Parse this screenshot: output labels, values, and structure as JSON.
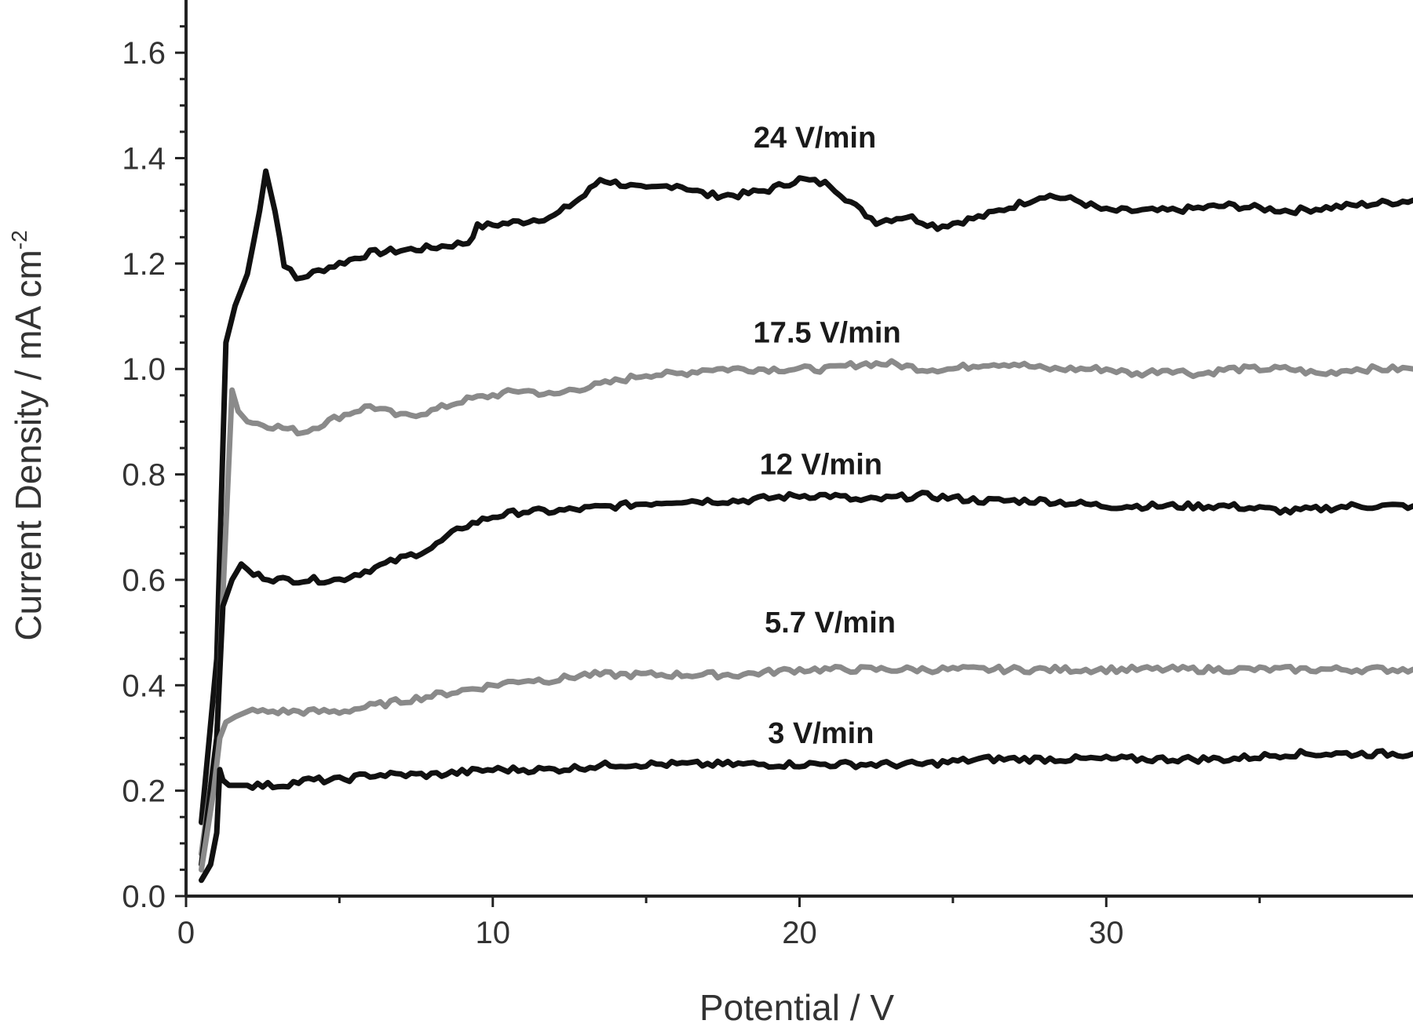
{
  "chart_data": {
    "type": "line",
    "xlabel": "Potential  / V",
    "ylabel": "Current Density / mA cm",
    "ylabel_sup": "-2",
    "xlim": [
      0,
      40
    ],
    "ylim": [
      0,
      1.7
    ],
    "x_ticks": [
      "0",
      "10",
      "20",
      "30"
    ],
    "x_tick_values": [
      0,
      10,
      20,
      30
    ],
    "x_minor_tick_values": [
      5,
      15,
      25,
      35
    ],
    "y_ticks": [
      "0.0",
      "0.2",
      "0.4",
      "0.6",
      "0.8",
      "1.0",
      "1.2",
      "1.4",
      "1.6"
    ],
    "y_tick_values": [
      0,
      0.2,
      0.4,
      0.6,
      0.8,
      1.0,
      1.2,
      1.4,
      1.6
    ],
    "grid": false,
    "legend": "none",
    "series": [
      {
        "name": "24 V/min",
        "color": "#111111",
        "label_x": 20.5,
        "label_y": 1.42,
        "x": [
          0.5,
          1.0,
          1.3,
          1.6,
          2.0,
          2.4,
          2.6,
          2.9,
          3.2,
          3.6,
          4.5,
          6,
          8,
          9.2,
          9.5,
          11,
          12,
          13,
          13.5,
          15,
          16,
          17,
          18,
          19,
          20,
          21,
          22,
          22.5,
          23.5,
          24.5,
          26,
          27,
          28,
          29,
          30,
          32,
          34,
          36,
          38,
          40
        ],
        "y": [
          0.14,
          0.45,
          1.05,
          1.12,
          1.18,
          1.3,
          1.38,
          1.3,
          1.2,
          1.17,
          1.19,
          1.22,
          1.23,
          1.24,
          1.27,
          1.28,
          1.29,
          1.33,
          1.36,
          1.34,
          1.35,
          1.33,
          1.33,
          1.34,
          1.36,
          1.35,
          1.3,
          1.28,
          1.29,
          1.27,
          1.29,
          1.31,
          1.33,
          1.32,
          1.3,
          1.3,
          1.31,
          1.3,
          1.31,
          1.32
        ]
      },
      {
        "name": "17.5 V/min",
        "color": "#8a8a8a",
        "label_x": 20.9,
        "label_y": 1.05,
        "x": [
          0.5,
          1.0,
          1.3,
          1.5,
          1.7,
          2.0,
          3.0,
          3.8,
          5,
          6,
          7,
          8,
          9,
          10,
          11,
          12,
          12.5,
          13.5,
          15,
          16,
          17,
          18,
          19,
          20,
          21,
          22,
          23,
          24,
          25,
          26,
          27,
          28,
          29,
          30,
          31,
          32,
          33,
          34,
          35,
          36,
          37,
          38,
          40
        ],
        "y": [
          0.08,
          0.3,
          0.7,
          0.96,
          0.92,
          0.9,
          0.89,
          0.88,
          0.91,
          0.93,
          0.91,
          0.92,
          0.94,
          0.95,
          0.96,
          0.95,
          0.96,
          0.97,
          0.99,
          0.99,
          1.0,
          1.0,
          1.0,
          1.0,
          1.0,
          1.01,
          1.01,
          1.0,
          1.0,
          1.01,
          1.01,
          1.0,
          1.0,
          1.0,
          0.99,
          1.0,
          0.99,
          1.0,
          1.0,
          1.0,
          0.99,
          1.0,
          1.0
        ]
      },
      {
        "name": "12 V/min",
        "color": "#111111",
        "label_x": 20.7,
        "label_y": 0.8,
        "x": [
          0.5,
          1.0,
          1.2,
          1.5,
          1.8,
          2.2,
          3.0,
          4.0,
          5,
          6,
          7,
          8,
          9,
          10,
          11,
          12,
          14,
          16,
          18,
          20,
          21,
          22,
          24,
          26,
          28,
          30,
          32,
          34,
          36,
          38,
          40
        ],
        "y": [
          0.06,
          0.3,
          0.55,
          0.6,
          0.63,
          0.61,
          0.6,
          0.6,
          0.6,
          0.62,
          0.64,
          0.66,
          0.7,
          0.72,
          0.73,
          0.73,
          0.74,
          0.75,
          0.75,
          0.76,
          0.76,
          0.75,
          0.76,
          0.75,
          0.75,
          0.74,
          0.74,
          0.74,
          0.73,
          0.74,
          0.74
        ]
      },
      {
        "name": "5.7 V/min",
        "color": "#8a8a8a",
        "label_x": 21.0,
        "label_y": 0.5,
        "x": [
          0.5,
          0.9,
          1.1,
          1.3,
          1.6,
          2,
          3,
          4,
          5,
          6,
          7,
          8,
          9,
          10,
          11,
          12,
          13,
          14,
          16,
          18,
          20,
          22,
          24,
          26,
          28,
          30,
          32,
          34,
          36,
          38,
          40
        ],
        "y": [
          0.05,
          0.2,
          0.3,
          0.33,
          0.34,
          0.35,
          0.35,
          0.35,
          0.35,
          0.36,
          0.37,
          0.38,
          0.39,
          0.4,
          0.41,
          0.41,
          0.42,
          0.42,
          0.42,
          0.42,
          0.43,
          0.43,
          0.43,
          0.43,
          0.43,
          0.43,
          0.43,
          0.43,
          0.43,
          0.43,
          0.43
        ]
      },
      {
        "name": "3 V/min",
        "color": "#111111",
        "label_x": 20.7,
        "label_y": 0.29,
        "x": [
          0.5,
          0.8,
          1.0,
          1.1,
          1.2,
          1.4,
          2,
          3,
          4,
          5,
          6,
          8,
          10,
          12,
          14,
          16,
          18,
          20,
          22,
          24,
          26,
          28,
          30,
          32,
          34,
          36,
          38,
          40
        ],
        "y": [
          0.03,
          0.06,
          0.12,
          0.24,
          0.22,
          0.21,
          0.21,
          0.21,
          0.22,
          0.22,
          0.23,
          0.23,
          0.24,
          0.24,
          0.25,
          0.25,
          0.25,
          0.25,
          0.25,
          0.25,
          0.26,
          0.26,
          0.26,
          0.26,
          0.26,
          0.27,
          0.27,
          0.27
        ]
      }
    ]
  }
}
